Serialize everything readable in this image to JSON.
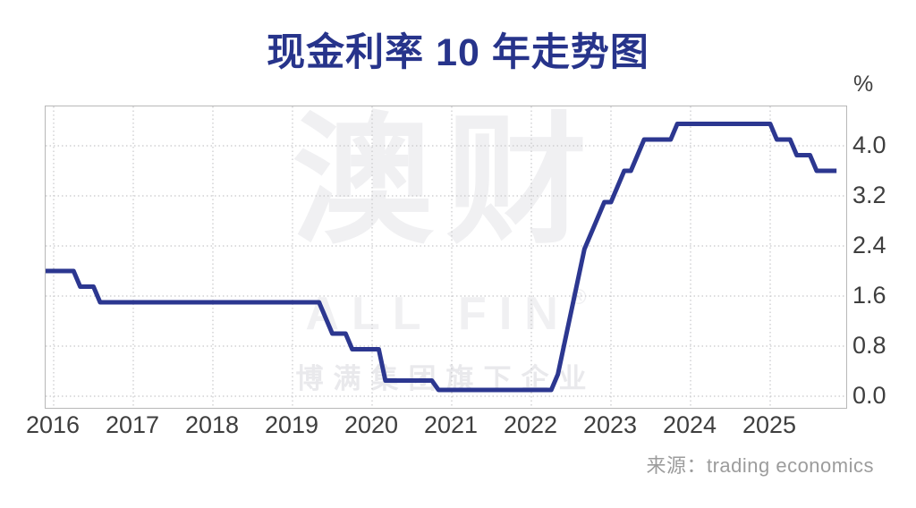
{
  "title": "现金利率 10 年走势图",
  "axis": {
    "unit": "%"
  },
  "source": {
    "prefix": "来源：",
    "name": "trading economics"
  },
  "watermark": {
    "cn": "澳财",
    "en": "ALL FIN",
    "reg": "®",
    "sub": "博满集团旗下企业"
  },
  "colors": {
    "line": "#2c3790",
    "title": "#27348b",
    "grid": "#c8c8ca",
    "frame": "#b8b8b8",
    "axis_text": "#3e3e3e",
    "source_text": "#9c9c9c",
    "watermark_main": "#f0f0f2",
    "watermark_sub": "#e9e9ec"
  },
  "chart_data": {
    "type": "line",
    "title": "现金利率 10 年走势图",
    "ylabel": "%",
    "series_name": "现金利率",
    "x_ticks": [
      2016,
      2017,
      2018,
      2019,
      2020,
      2021,
      2022,
      2023,
      2024,
      2025
    ],
    "y_ticks": [
      4.0,
      3.2,
      2.4,
      1.6,
      0.8,
      0.0
    ],
    "x_range": [
      2015.899,
      2025.955
    ],
    "y_range": [
      -0.186,
      4.629
    ],
    "grid": "dotted",
    "frequency": "monthly",
    "rate_changes": [
      {
        "date": "2016-01",
        "value": 2.0
      },
      {
        "date": "2016-05",
        "value": 1.75
      },
      {
        "date": "2016-08",
        "value": 1.5
      },
      {
        "date": "2019-06",
        "value": 1.25
      },
      {
        "date": "2019-07",
        "value": 1.0
      },
      {
        "date": "2019-10",
        "value": 0.75
      },
      {
        "date": "2020-03",
        "value": 0.25
      },
      {
        "date": "2020-11",
        "value": 0.1
      },
      {
        "date": "2022-05",
        "value": 0.35
      },
      {
        "date": "2022-06",
        "value": 0.85
      },
      {
        "date": "2022-07",
        "value": 1.35
      },
      {
        "date": "2022-08",
        "value": 1.85
      },
      {
        "date": "2022-09",
        "value": 2.35
      },
      {
        "date": "2022-10",
        "value": 2.6
      },
      {
        "date": "2022-11",
        "value": 2.85
      },
      {
        "date": "2022-12",
        "value": 3.1
      },
      {
        "date": "2023-02",
        "value": 3.35
      },
      {
        "date": "2023-03",
        "value": 3.6
      },
      {
        "date": "2023-05",
        "value": 3.85
      },
      {
        "date": "2023-06",
        "value": 4.1
      },
      {
        "date": "2023-11",
        "value": 4.35
      },
      {
        "date": "2025-02",
        "value": 4.1
      },
      {
        "date": "2025-05",
        "value": 3.85
      },
      {
        "date": "2025-08",
        "value": 3.6
      }
    ],
    "start_date": "2016-01",
    "end_date": "2025-11"
  }
}
